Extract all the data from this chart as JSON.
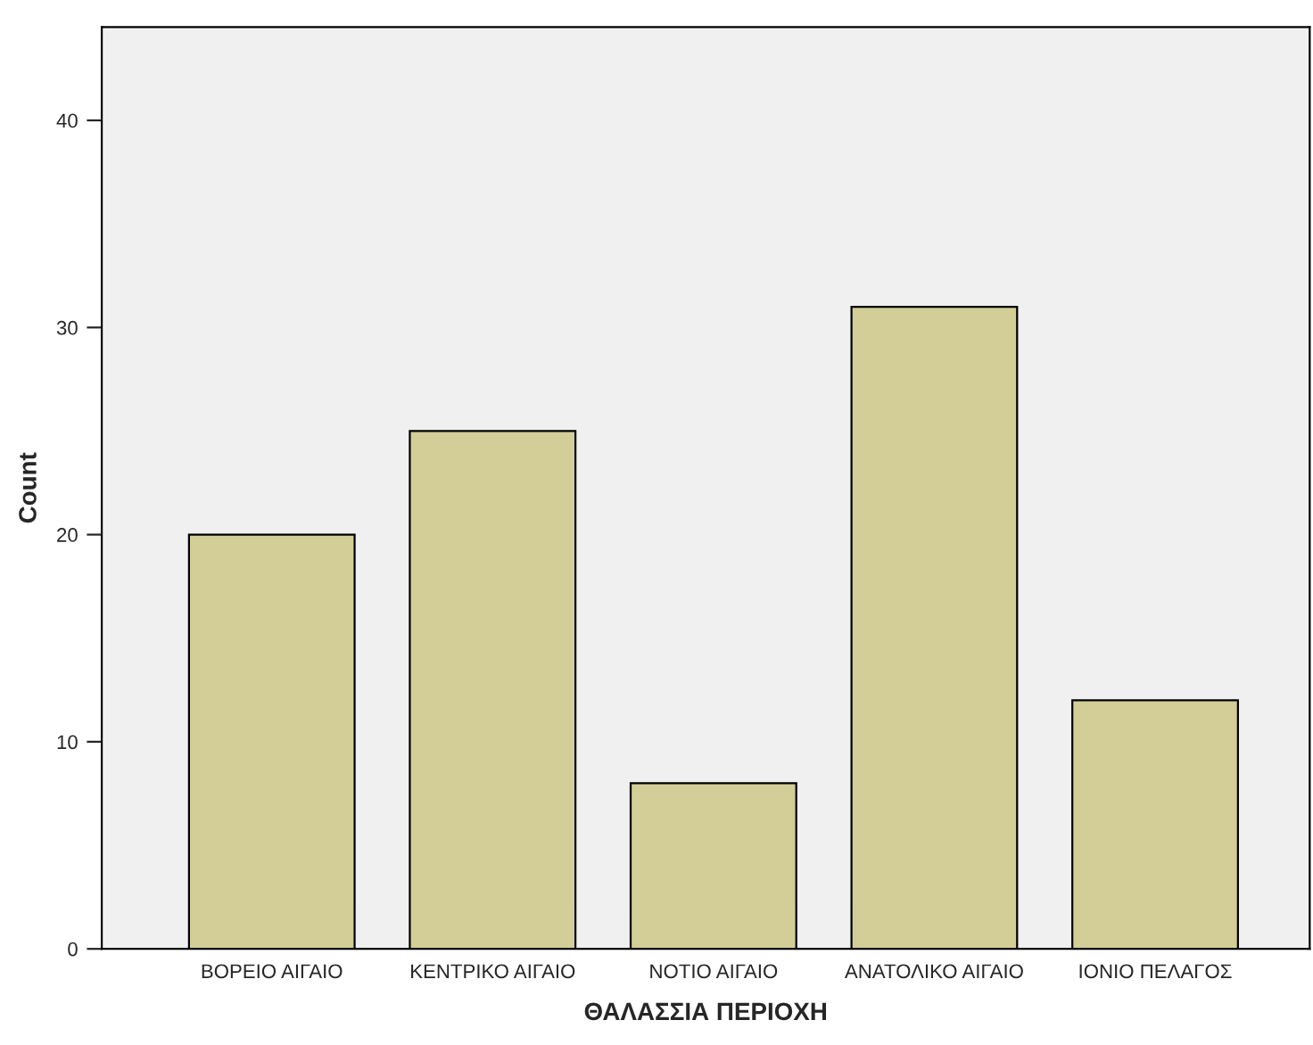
{
  "chart_data": {
    "type": "bar",
    "xlabel": "ΘΑΛΑΣΣΙΑ ΠΕΡΙΟΧΗ",
    "ylabel": "Count",
    "categories": [
      "ΒΟΡΕΙΟ ΑΙΓΑΙΟ",
      "ΚΕΝΤΡΙΚΟ ΑΙΓΑΙΟ",
      "ΝΟΤΙΟ ΑΙΓΑΙΟ",
      "ΑΝΑΤΟΛΙΚΟ ΑΙΓΑΙΟ",
      "ΙΟΝΙΟ ΠΕΛΑΓΟΣ"
    ],
    "values": [
      20,
      25,
      8,
      31,
      12
    ],
    "color": "#d3ce97",
    "ylim": [
      0,
      44.5
    ],
    "yticks": [
      0,
      10,
      20,
      30,
      40
    ],
    "grid": false,
    "legend": false
  }
}
